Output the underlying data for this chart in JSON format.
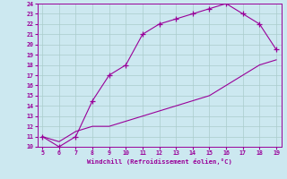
{
  "xlabel": "Windchill (Refroidissement éolien,°C)",
  "upper_x": [
    5,
    6,
    7,
    8,
    9,
    10,
    11,
    12,
    13,
    14,
    15,
    16,
    17,
    18,
    19
  ],
  "upper_y": [
    11.0,
    10.0,
    11.0,
    14.5,
    17.0,
    18.0,
    21.0,
    22.0,
    22.5,
    23.0,
    23.5,
    24.0,
    23.0,
    22.0,
    19.5
  ],
  "lower_x": [
    5,
    6,
    7,
    8,
    9,
    10,
    11,
    12,
    13,
    14,
    15,
    16,
    17,
    18,
    19
  ],
  "lower_y": [
    11.0,
    10.5,
    11.5,
    12.0,
    12.0,
    12.5,
    13.0,
    13.5,
    14.0,
    14.5,
    15.0,
    16.0,
    17.0,
    18.0,
    18.5
  ],
  "line_color": "#990099",
  "bg_color": "#cce8f0",
  "grid_color": "#aacccc",
  "tick_color": "#990099",
  "label_color": "#990099",
  "xlim": [
    5,
    19
  ],
  "ylim": [
    10,
    24
  ],
  "xticks": [
    5,
    6,
    7,
    8,
    9,
    10,
    11,
    12,
    13,
    14,
    15,
    16,
    17,
    18,
    19
  ],
  "yticks": [
    10,
    11,
    12,
    13,
    14,
    15,
    16,
    17,
    18,
    19,
    20,
    21,
    22,
    23,
    24
  ]
}
